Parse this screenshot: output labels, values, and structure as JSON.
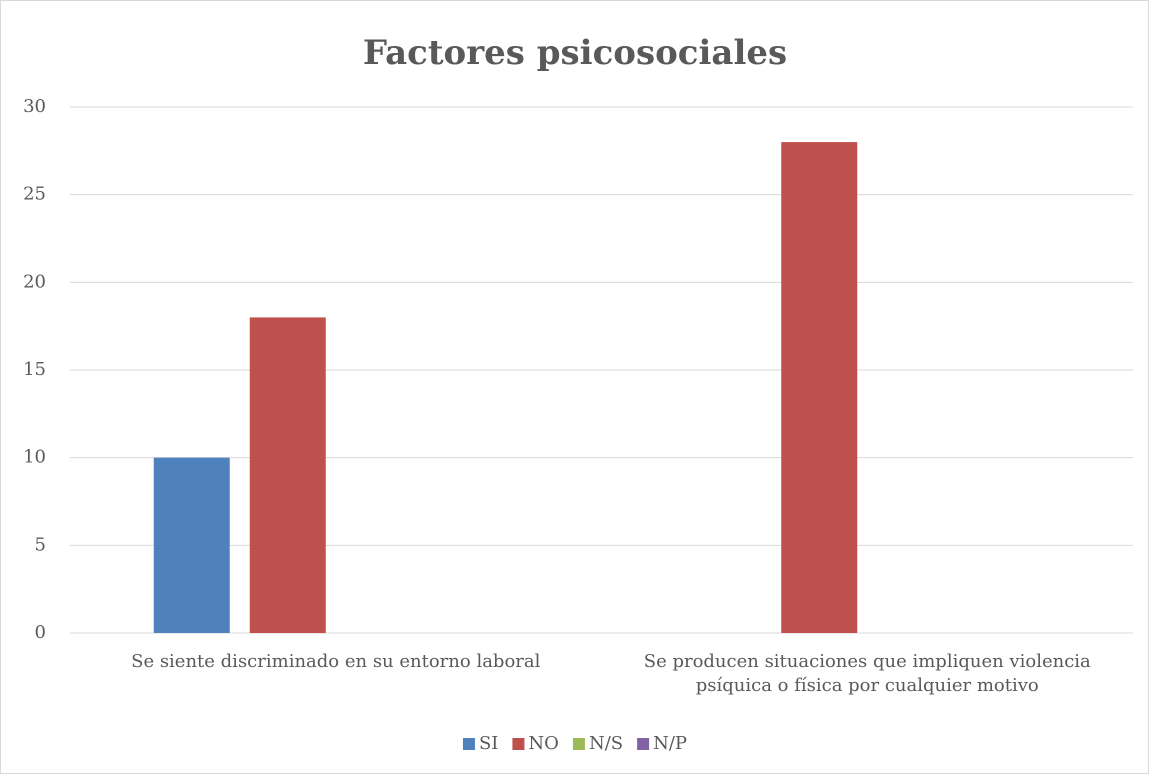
{
  "chart_data": {
    "type": "bar",
    "title": "Factores psicosociales",
    "categories": [
      "Se siente discriminado en su entorno laboral",
      "Se producen situaciones que impliquen violencia psíquica o física por cualquier motivo"
    ],
    "series": [
      {
        "name": "SI",
        "color": "#4f81bd",
        "values": [
          10,
          0
        ]
      },
      {
        "name": "NO",
        "color": "#c0504d",
        "values": [
          18,
          28
        ]
      },
      {
        "name": "N/S",
        "color": "#9bbb59",
        "values": [
          0,
          0
        ]
      },
      {
        "name": "N/P",
        "color": "#8064a2",
        "values": [
          0,
          0
        ]
      }
    ],
    "ylim": [
      0,
      30
    ],
    "yticks": [
      0,
      5,
      10,
      15,
      20,
      25,
      30
    ],
    "grid": true,
    "legend": "bottom"
  }
}
